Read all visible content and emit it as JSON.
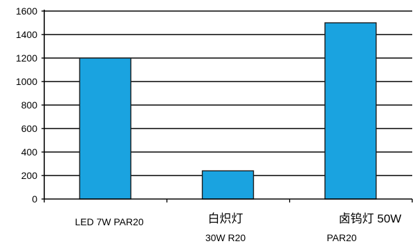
{
  "chart_data": {
    "type": "bar",
    "categories": [
      [
        "LED  7W  PAR20"
      ],
      [
        "白炽灯",
        "30W  R20"
      ],
      [
        "卤钨灯  50W",
        "PAR20"
      ]
    ],
    "values": [
      1200,
      240,
      1500
    ],
    "ylim": [
      0,
      1600
    ],
    "yticks": [
      0,
      200,
      400,
      600,
      800,
      1000,
      1200,
      1400,
      1600
    ],
    "grid": true,
    "colors": {
      "bar": "#1aa3e0",
      "bar_border": "#1a1a1a",
      "grid": "#000000",
      "axis": "#000000"
    }
  }
}
